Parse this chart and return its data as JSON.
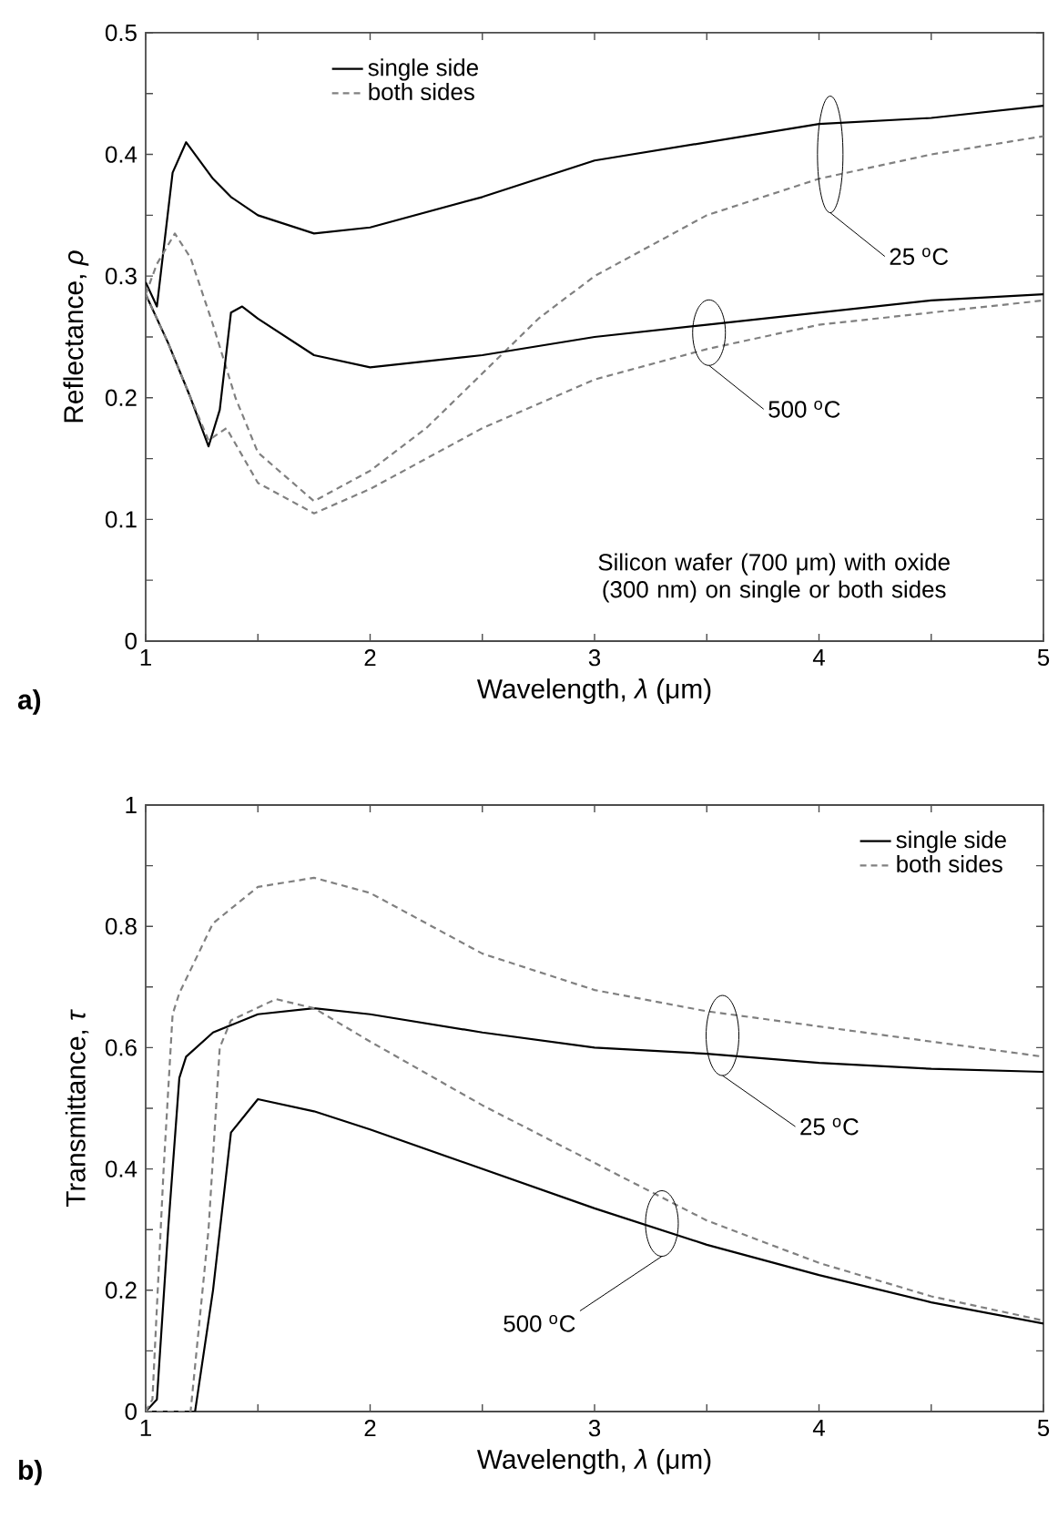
{
  "chart_data": [
    {
      "type": "line",
      "title": "a)",
      "xlabel": "Wavelength, *λ* (μm)",
      "ylabel": "Reflectance, *ρ*",
      "xlim": [
        1,
        5
      ],
      "ylim": [
        0,
        0.5
      ],
      "xticks": [
        1,
        {
          "value": 1.5,
          "label": null
        },
        2,
        {
          "value": 2.5,
          "label": null
        },
        3,
        {
          "value": 3.5,
          "label": null
        },
        4,
        {
          "value": 4.5,
          "label": null
        },
        5
      ],
      "yticks": [
        0,
        {
          "value": 0.05,
          "label": null
        },
        0.1,
        {
          "value": 0.15,
          "label": null
        },
        0.2,
        {
          "value": 0.25,
          "label": null
        },
        0.3,
        {
          "value": 0.35,
          "label": null
        },
        0.4,
        {
          "value": 0.45,
          "label": null
        },
        0.5
      ],
      "legend": "top left",
      "grid": false,
      "series": [
        {
          "name": "single side",
          "color": "#000000",
          "line_style": "solid",
          "x": [
            1,
            1.05,
            1.12,
            1.18,
            1.3,
            1.38,
            1.5,
            1.75,
            2,
            2.5,
            3,
            3.5,
            4,
            4.5,
            5
          ],
          "values": [
            0.295,
            0.275,
            0.385,
            0.41,
            0.38,
            0.365,
            0.35,
            0.335,
            0.34,
            0.365,
            0.395,
            0.41,
            0.425,
            0.43,
            0.44
          ]
        },
        {
          "name": "both sides",
          "color": "#808080",
          "line_style": "dashed",
          "x": [
            1,
            1.05,
            1.13,
            1.2,
            1.3,
            1.4,
            1.5,
            1.75,
            2,
            2.25,
            2.5,
            2.75,
            3,
            3.5,
            4,
            4.5,
            5
          ],
          "values": [
            0.285,
            0.31,
            0.335,
            0.315,
            0.26,
            0.2,
            0.155,
            0.115,
            0.14,
            0.175,
            0.22,
            0.265,
            0.3,
            0.35,
            0.38,
            0.4,
            0.415
          ]
        },
        {
          "color": "#000000",
          "line_style": "solid",
          "x": [
            1,
            1.1,
            1.2,
            1.28,
            1.33,
            1.38,
            1.43,
            1.5,
            1.75,
            2,
            2.5,
            3,
            3.5,
            4,
            4.5,
            5
          ],
          "values": [
            0.285,
            0.245,
            0.2,
            0.16,
            0.19,
            0.27,
            0.275,
            0.265,
            0.235,
            0.225,
            0.235,
            0.25,
            0.26,
            0.27,
            0.28,
            0.285
          ]
        },
        {
          "color": "#808080",
          "line_style": "dashed",
          "x": [
            1,
            1.1,
            1.2,
            1.28,
            1.36,
            1.5,
            1.75,
            2,
            2.5,
            3,
            3.5,
            4,
            4.5,
            5
          ],
          "values": [
            0.285,
            0.245,
            0.2,
            0.165,
            0.175,
            0.13,
            0.105,
            0.125,
            0.175,
            0.215,
            0.24,
            0.26,
            0.27,
            0.28
          ]
        }
      ],
      "annotations": [
        "25 $^{o}$C",
        "500 $^{o}$C",
        "Silicon wafer (700 μm) with oxide (300 nm) on single or both sides"
      ]
    },
    {
      "type": "line",
      "title": "b)",
      "xlabel": "Wavelength, *λ* (μm)",
      "ylabel": "Transmittance, *τ*",
      "xlim": [
        1,
        5
      ],
      "ylim": [
        0,
        1
      ],
      "xticks": [
        1,
        {
          "value": 1.5,
          "label": null
        },
        2,
        {
          "value": 2.5,
          "label": null
        },
        3,
        {
          "value": 3.5,
          "label": null
        },
        4,
        {
          "value": 4.5,
          "label": null
        },
        5
      ],
      "yticks": [
        0,
        {
          "value": 0.1,
          "label": null
        },
        0.2,
        {
          "value": 0.3,
          "label": null
        },
        0.4,
        {
          "value": 0.5,
          "label": null
        },
        0.6,
        {
          "value": 0.7,
          "label": null
        },
        0.8,
        {
          "value": 0.9,
          "label": null
        },
        1
      ],
      "legend": "top right",
      "grid": false,
      "series": [
        {
          "name": "single side",
          "color": "#000000",
          "line_style": "solid",
          "x": [
            1,
            1.05,
            1.1,
            1.15,
            1.18,
            1.3,
            1.5,
            1.75,
            2,
            2.5,
            3,
            3.5,
            4,
            4.5,
            5
          ],
          "values": [
            0,
            0.02,
            0.3,
            0.55,
            0.585,
            0.625,
            0.655,
            0.665,
            0.655,
            0.625,
            0.6,
            0.59,
            0.575,
            0.565,
            0.56
          ]
        },
        {
          "name": "both sides",
          "color": "#808080",
          "line_style": "dashed",
          "x": [
            1,
            1.03,
            1.08,
            1.12,
            1.15,
            1.3,
            1.5,
            1.75,
            2,
            2.5,
            3,
            3.5,
            4,
            4.5,
            5
          ],
          "values": [
            0,
            0.02,
            0.4,
            0.655,
            0.69,
            0.805,
            0.865,
            0.88,
            0.855,
            0.755,
            0.695,
            0.66,
            0.635,
            0.61,
            0.585
          ]
        },
        {
          "color": "#000000",
          "line_style": "solid",
          "x": [
            1,
            1.22,
            1.3,
            1.38,
            1.5,
            1.75,
            2,
            2.5,
            3,
            3.5,
            4,
            4.5,
            5
          ],
          "values": [
            0,
            0,
            0.2,
            0.46,
            0.515,
            0.495,
            0.465,
            0.4,
            0.335,
            0.275,
            0.225,
            0.18,
            0.145
          ]
        },
        {
          "color": "#808080",
          "line_style": "dashed",
          "x": [
            1,
            1.2,
            1.28,
            1.33,
            1.38,
            1.58,
            1.75,
            2,
            2.5,
            3,
            3.5,
            4,
            4.5,
            5
          ],
          "values": [
            0,
            0,
            0.3,
            0.6,
            0.645,
            0.68,
            0.665,
            0.61,
            0.505,
            0.41,
            0.315,
            0.245,
            0.19,
            0.15
          ]
        }
      ],
      "annotations": [
        "25 $^{o}$C",
        "500 $^{o}$C"
      ]
    }
  ]
}
